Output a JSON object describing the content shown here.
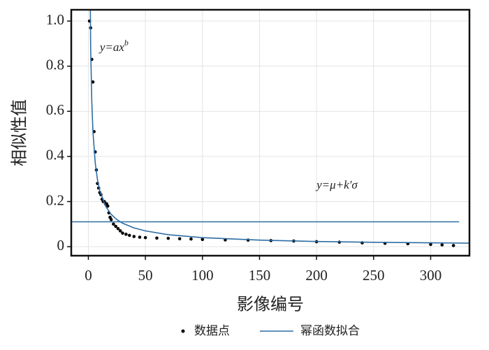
{
  "chart_data": {
    "type": "scatter",
    "x_label": "影像编号",
    "y_label": "相似性值",
    "xlim": [
      -15,
      334
    ],
    "ylim": [
      -0.04,
      1.05
    ],
    "xticks": [
      0,
      50,
      100,
      150,
      200,
      250,
      300
    ],
    "yticks": [
      0,
      0.2,
      0.4,
      0.6,
      0.8,
      {
        "value": 1,
        "label": "1.0"
      }
    ],
    "grid": true,
    "legend": "bottom",
    "series": [
      {
        "name": "数据点",
        "type": "scatter",
        "color": "#000000",
        "x": [
          1,
          2,
          3,
          4,
          5,
          6,
          7,
          8,
          9,
          10,
          11,
          12,
          13,
          14,
          15,
          16,
          17,
          18,
          19,
          20,
          22,
          24,
          26,
          28,
          30,
          33,
          36,
          40,
          45,
          50,
          60,
          70,
          80,
          90,
          100,
          120,
          140,
          160,
          180,
          200,
          220,
          240,
          260,
          280,
          300,
          310,
          320
        ],
        "values": [
          1.0,
          0.97,
          0.83,
          0.73,
          0.51,
          0.42,
          0.34,
          0.28,
          0.26,
          0.24,
          0.23,
          0.21,
          0.2,
          0.2,
          0.19,
          0.19,
          0.18,
          0.15,
          0.13,
          0.12,
          0.1,
          0.09,
          0.08,
          0.07,
          0.06,
          0.055,
          0.05,
          0.045,
          0.042,
          0.04,
          0.038,
          0.037,
          0.035,
          0.034,
          0.032,
          0.03,
          0.029,
          0.027,
          0.025,
          0.022,
          0.02,
          0.017,
          0.015,
          0.013,
          0.01,
          0.008,
          0.005
        ]
      },
      {
        "name": "幂函数拟合",
        "type": "line",
        "color": "#2e6da4",
        "x": [
          1,
          2,
          3,
          4,
          6,
          8,
          10,
          15,
          20,
          25,
          30,
          40,
          50,
          70,
          100,
          150,
          200,
          250,
          300,
          334
        ],
        "values": [
          1.53,
          0.885,
          0.642,
          0.511,
          0.372,
          0.296,
          0.248,
          0.18,
          0.143,
          0.12,
          0.104,
          0.083,
          0.07,
          0.053,
          0.04,
          0.029,
          0.023,
          0.0195,
          0.017,
          0.0155
        ]
      }
    ],
    "reference_lines": [
      {
        "color": "#2e6da4",
        "x": [
          -15,
          325
        ],
        "values": [
          0.11,
          0.11
        ]
      }
    ],
    "annotations": [
      {
        "text": "y=ax",
        "sup": "b",
        "x": 10,
        "y": 0.88
      },
      {
        "text": "y=μ+k′σ",
        "x": 200,
        "y": 0.27
      }
    ]
  }
}
